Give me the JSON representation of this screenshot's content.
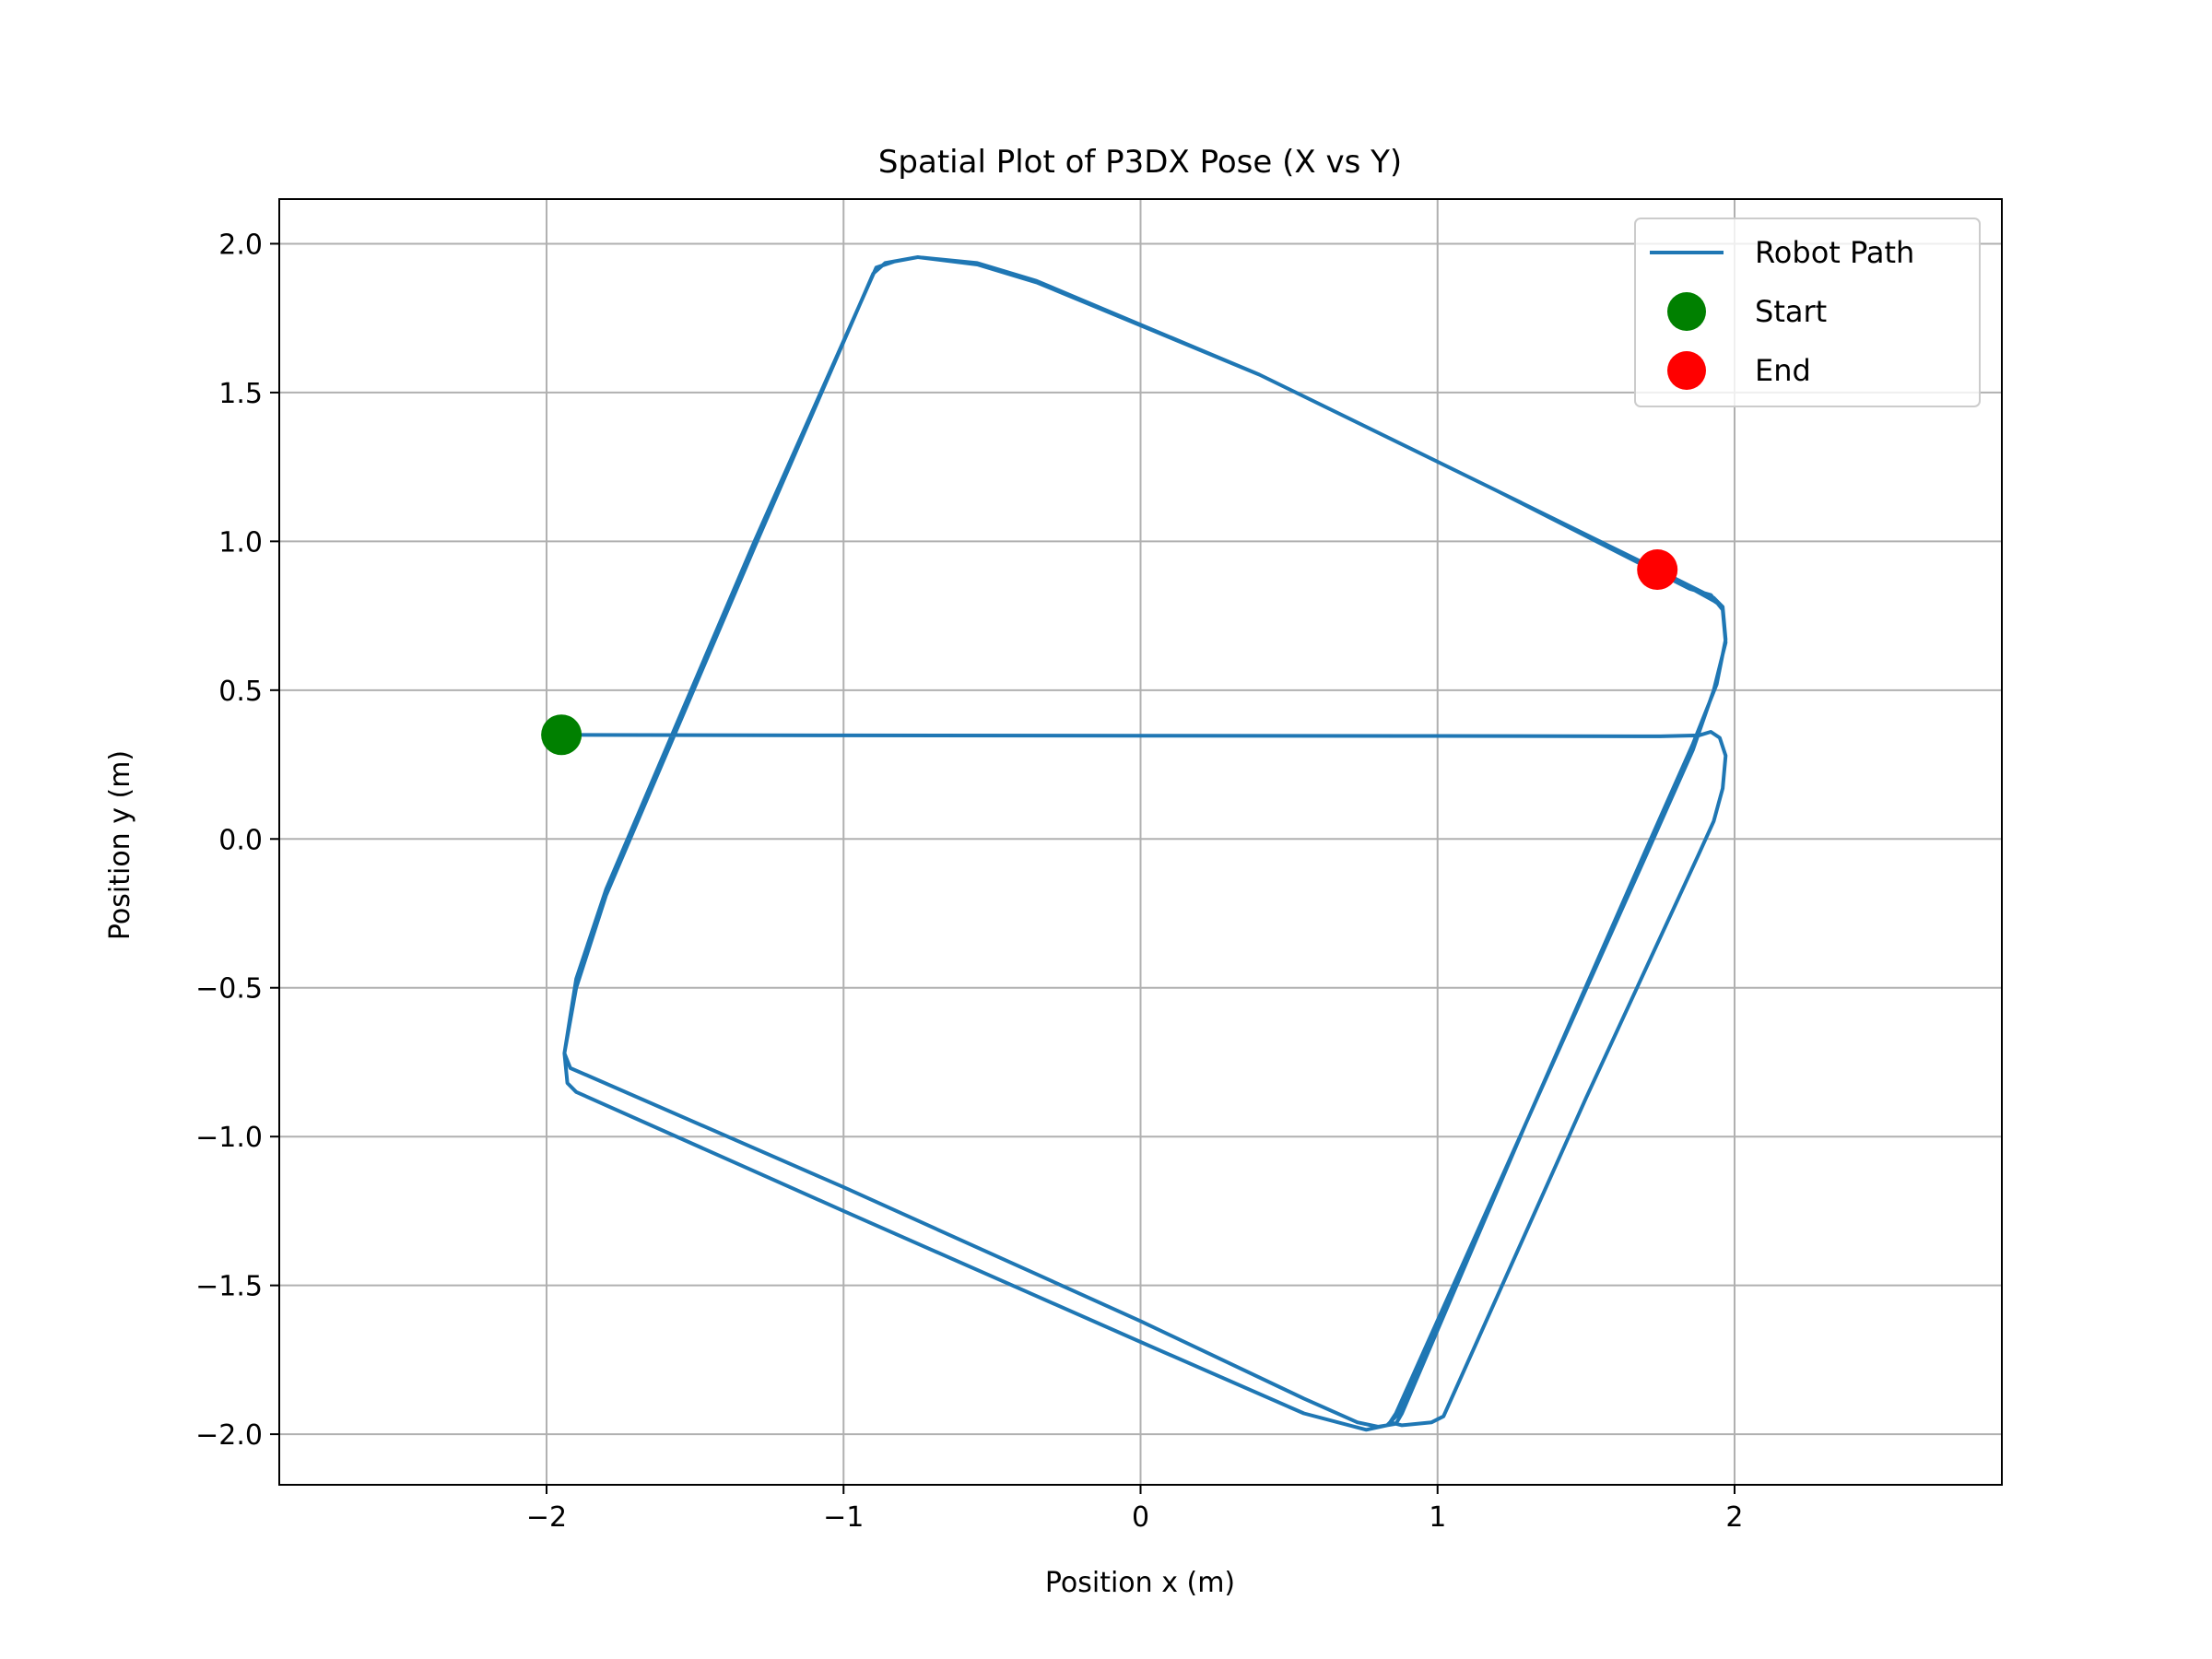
{
  "chart_data": {
    "type": "line",
    "title": "Spatial Plot of P3DX Pose (X vs Y)",
    "xlabel": "Position x (m)",
    "ylabel": "Position y (m)",
    "xlim": [
      -2.9,
      2.9
    ],
    "ylim": [
      -2.17,
      2.15
    ],
    "xticks": [
      -2,
      -1,
      0,
      1,
      2
    ],
    "xtick_labels": [
      "−2",
      "−1",
      "0",
      "1",
      "2"
    ],
    "yticks": [
      -2.0,
      -1.5,
      -1.0,
      -0.5,
      0.0,
      0.5,
      1.0,
      1.5,
      2.0
    ],
    "ytick_labels": [
      "−2.0",
      "−1.5",
      "−1.0",
      "−0.5",
      "0.0",
      "0.5",
      "1.0",
      "1.5",
      "2.0"
    ],
    "grid": true,
    "legend_position": "top-right",
    "series": [
      {
        "name": "Robot Path",
        "kind": "line",
        "color": "#1f77b4",
        "points": [
          [
            -1.95,
            0.35
          ],
          [
            -1.0,
            0.348
          ],
          [
            0.0,
            0.347
          ],
          [
            1.0,
            0.346
          ],
          [
            1.75,
            0.345
          ],
          [
            1.88,
            0.348
          ],
          [
            1.92,
            0.36
          ],
          [
            1.95,
            0.34
          ],
          [
            1.97,
            0.28
          ],
          [
            1.96,
            0.17
          ],
          [
            1.93,
            0.06
          ],
          [
            1.88,
            -0.05
          ],
          [
            1.5,
            -0.87
          ],
          [
            1.02,
            -1.94
          ],
          [
            0.98,
            -1.96
          ],
          [
            0.88,
            -1.97
          ],
          [
            0.84,
            -1.96
          ],
          [
            0.86,
            -1.93
          ],
          [
            1.3,
            -0.95
          ],
          [
            1.7,
            -0.06
          ],
          [
            1.86,
            0.3
          ],
          [
            1.93,
            0.5
          ],
          [
            1.97,
            0.66
          ],
          [
            1.96,
            0.77
          ],
          [
            1.92,
            0.82
          ],
          [
            1.85,
            0.84
          ],
          [
            1.2,
            1.17
          ],
          [
            0.4,
            1.56
          ],
          [
            -0.35,
            1.87
          ],
          [
            -0.55,
            1.93
          ],
          [
            -0.75,
            1.955
          ],
          [
            -0.83,
            1.94
          ],
          [
            -0.89,
            1.92
          ],
          [
            -1.3,
            1.0
          ],
          [
            -1.8,
            -0.17
          ],
          [
            -1.9,
            -0.47
          ],
          [
            -1.94,
            -0.72
          ],
          [
            -1.92,
            -0.77
          ],
          [
            -1.85,
            -0.8
          ],
          [
            -1.0,
            -1.17
          ],
          [
            0.0,
            -1.62
          ],
          [
            0.55,
            -1.88
          ],
          [
            0.73,
            -1.96
          ],
          [
            0.8,
            -1.975
          ],
          [
            0.86,
            -1.965
          ],
          [
            0.88,
            -1.93
          ],
          [
            1.3,
            -0.95
          ],
          [
            1.7,
            -0.04
          ],
          [
            1.86,
            0.32
          ],
          [
            1.94,
            0.52
          ],
          [
            1.97,
            0.67
          ],
          [
            1.96,
            0.78
          ],
          [
            1.93,
            0.81
          ],
          [
            1.74,
            0.905
          ],
          [
            1.2,
            1.17
          ],
          [
            0.4,
            1.56
          ],
          [
            -0.35,
            1.875
          ],
          [
            -0.55,
            1.935
          ],
          [
            -0.75,
            1.955
          ],
          [
            -0.86,
            1.935
          ],
          [
            -0.9,
            1.9
          ],
          [
            -1.3,
            0.98
          ],
          [
            -1.8,
            -0.19
          ],
          [
            -1.9,
            -0.5
          ],
          [
            -1.94,
            -0.72
          ],
          [
            -1.93,
            -0.82
          ],
          [
            -1.9,
            -0.85
          ],
          [
            -1.0,
            -1.25
          ],
          [
            0.0,
            -1.69
          ],
          [
            0.55,
            -1.93
          ],
          [
            0.76,
            -1.985
          ],
          [
            0.83,
            -1.97
          ],
          [
            0.87,
            -1.93
          ],
          [
            1.3,
            -0.95
          ],
          [
            1.7,
            -0.05
          ],
          [
            1.86,
            0.32
          ],
          [
            1.94,
            0.52
          ],
          [
            1.97,
            0.67
          ],
          [
            1.96,
            0.78
          ],
          [
            1.93,
            0.8
          ],
          [
            1.74,
            0.905
          ]
        ]
      },
      {
        "name": "Start",
        "kind": "marker",
        "color": "#008000",
        "x": -1.95,
        "y": 0.35
      },
      {
        "name": "End",
        "kind": "marker",
        "color": "#ff0000",
        "x": 1.74,
        "y": 0.905
      }
    ]
  }
}
